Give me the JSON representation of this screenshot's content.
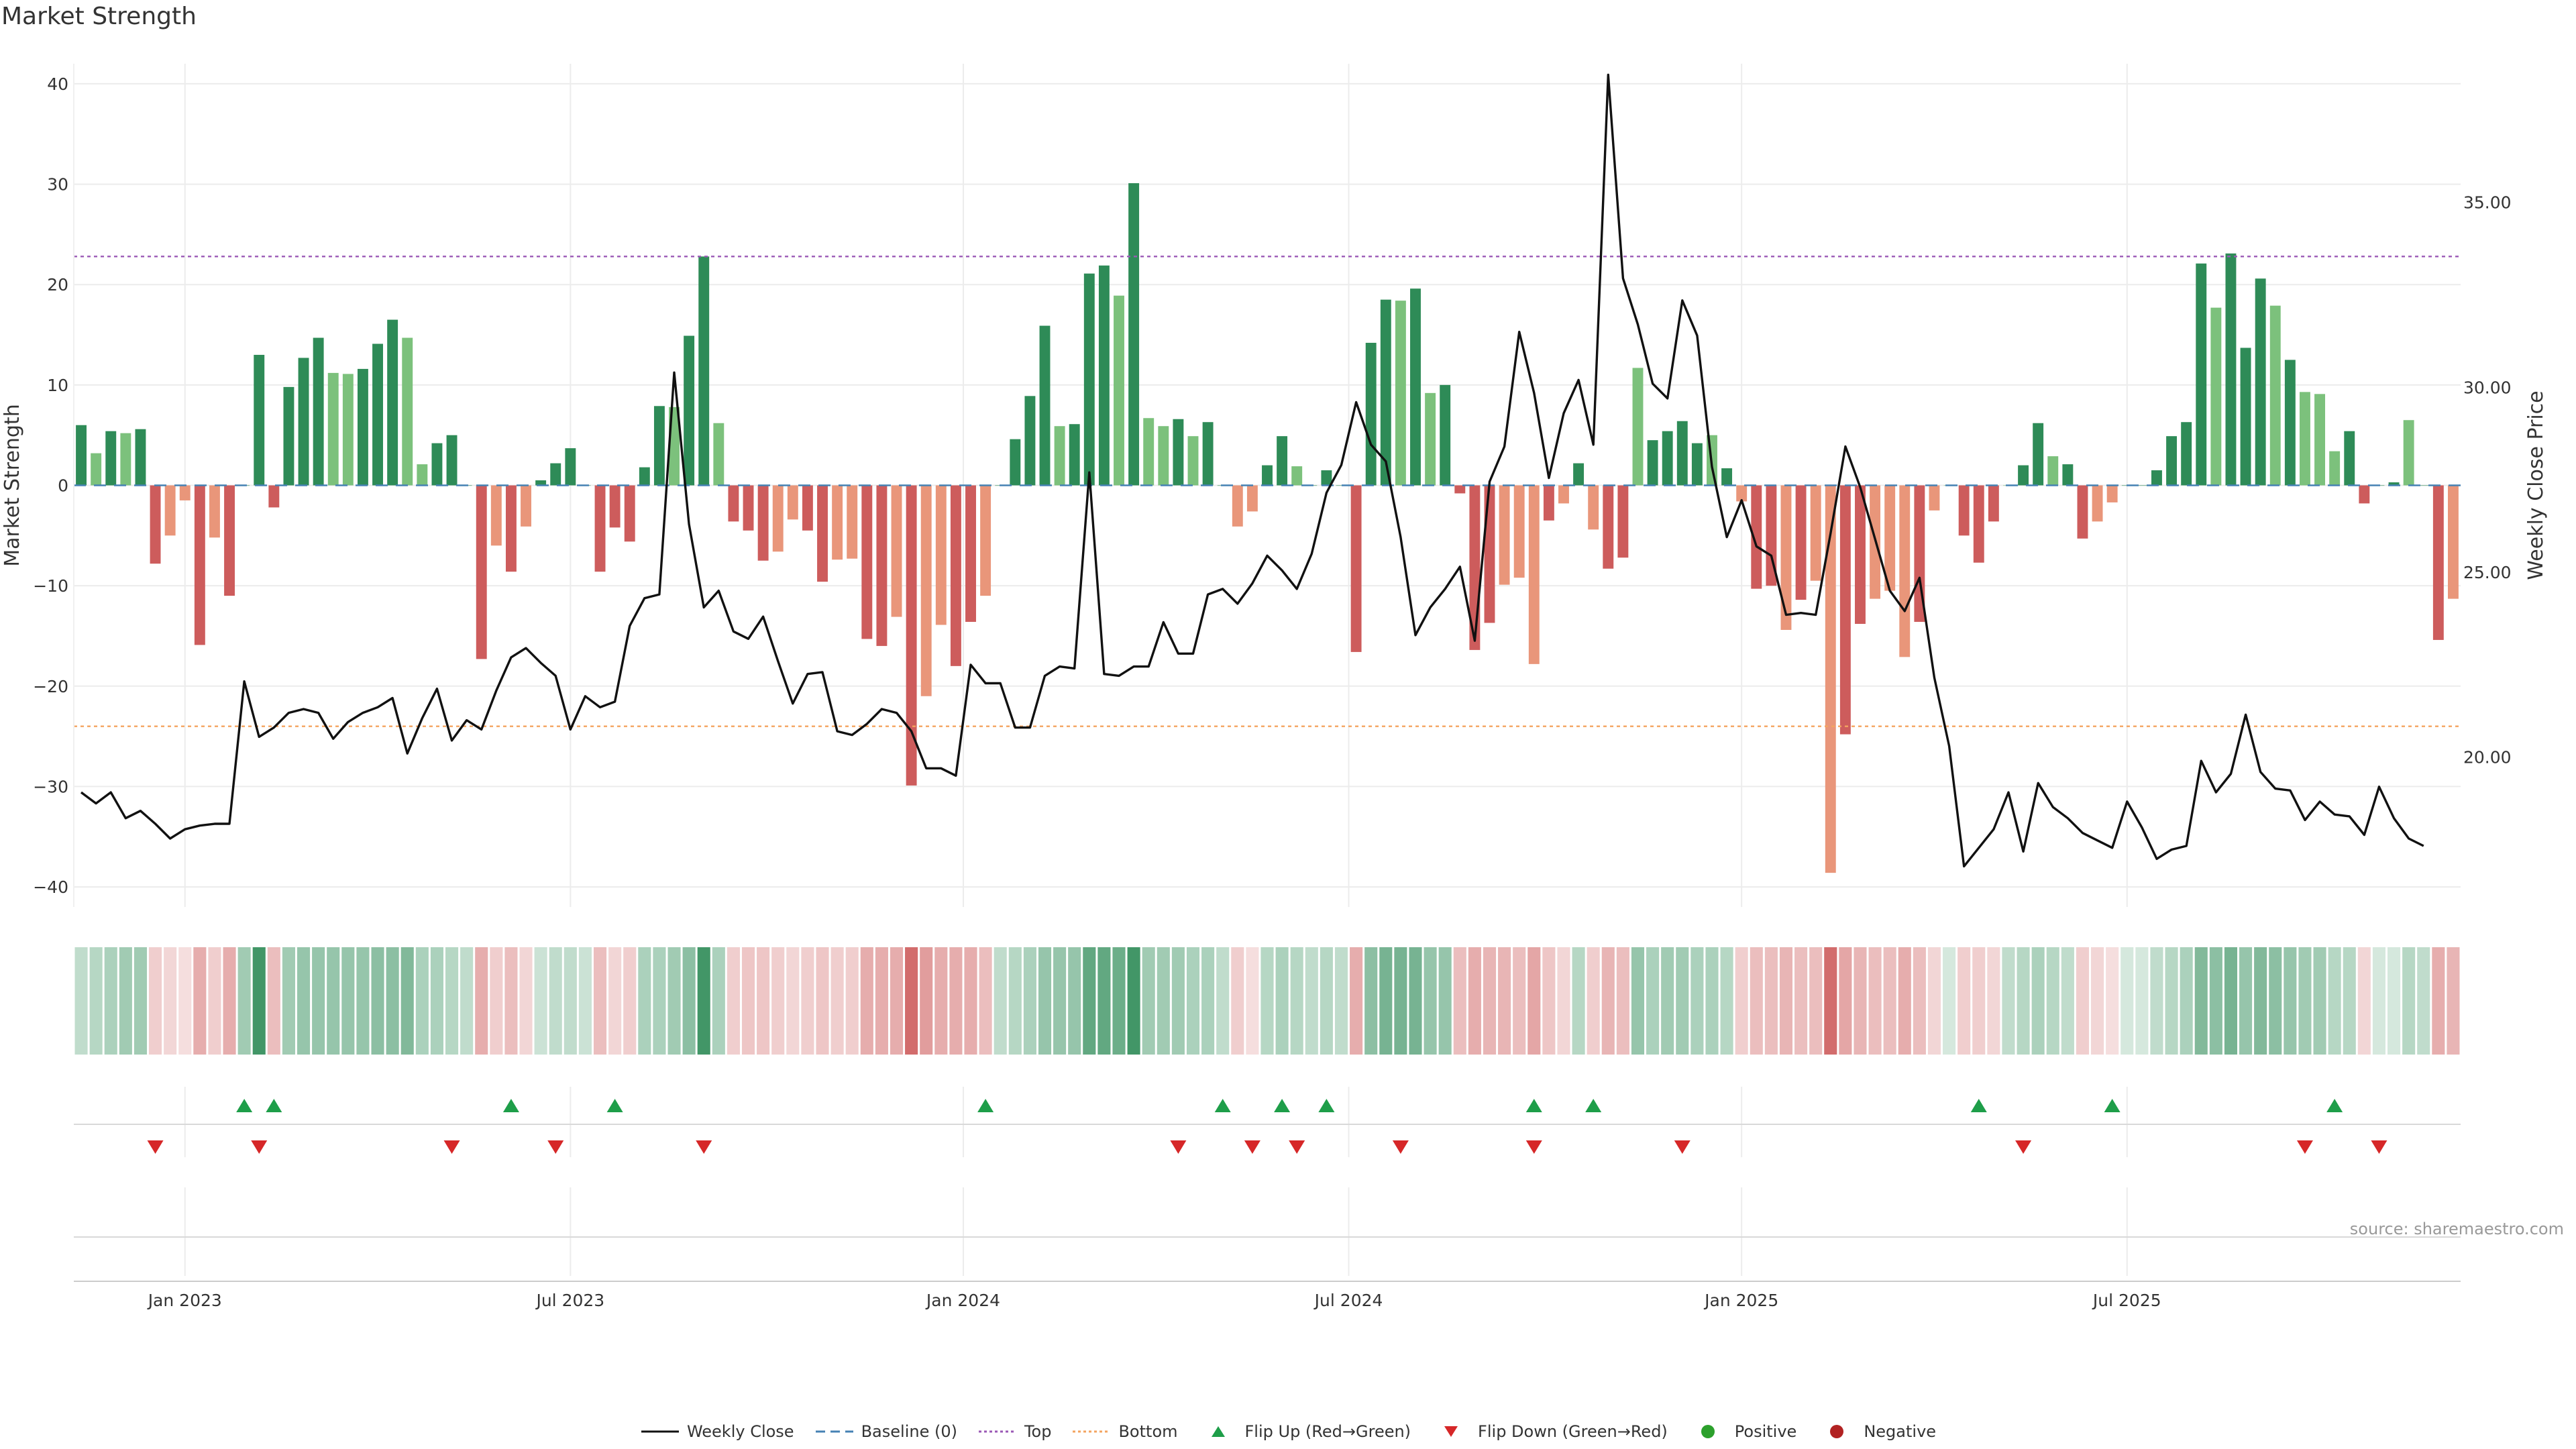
{
  "title": "Market Strength",
  "source": "source: sharemaestro.com",
  "colors": {
    "strong_green": "#2e8b57",
    "light_green": "#7cc17c",
    "strong_red": "#cd5c5c",
    "light_red": "#e9967a",
    "price_line": "#111111",
    "top_line": "#9b59b6",
    "bottom_line": "#f4a460",
    "baseline": "#4682b4",
    "flip_up": "#1e9e49",
    "flip_down": "#d62728",
    "positive": "#2ca02c",
    "negative": "#b22222"
  },
  "legend": [
    {
      "label": "Weekly Close",
      "swatch": "line-solid",
      "color": "#111111"
    },
    {
      "label": "Baseline (0)",
      "swatch": "line-dash",
      "color": "#4682b4"
    },
    {
      "label": "Top",
      "swatch": "line-dot",
      "color": "#9b59b6"
    },
    {
      "label": "Bottom",
      "swatch": "line-dot",
      "color": "#f4a460"
    },
    {
      "label": "Flip Up (Red→Green)",
      "swatch": "triangle-up",
      "color": "#1e9e49"
    },
    {
      "label": "Flip Down (Green→Red)",
      "swatch": "triangle-down",
      "color": "#d62728"
    },
    {
      "label": "Positive",
      "swatch": "dot",
      "color": "#2ca02c"
    },
    {
      "label": "Negative",
      "swatch": "dot",
      "color": "#b22222"
    }
  ],
  "chart_data": {
    "type": "bar",
    "title": "Market Strength",
    "y_left": {
      "label": "Market Strength",
      "lim": [
        -42,
        42
      ],
      "ticks": [
        40,
        30,
        20,
        10,
        0,
        -10,
        -20,
        -30,
        -40
      ]
    },
    "y_right": {
      "label": "Weekly Close Price",
      "lim": [
        15.95,
        38.75
      ],
      "ticks": [
        "35.00",
        "30.00",
        "25.00",
        "20.00"
      ]
    },
    "x_ticks": [
      "Jan 2023",
      "Jul 2023",
      "Jan 2024",
      "Jul 2024",
      "Jan 2025",
      "Jul 2025"
    ],
    "x_tick_index": [
      7,
      33,
      59.5,
      85.5,
      112,
      138
    ],
    "top_level": 22.8,
    "bottom_level": -24,
    "strength": [
      6,
      3.2,
      5.4,
      5.2,
      5.6,
      -7.8,
      -5,
      -1.5,
      -15.9,
      -5.2,
      -11,
      0,
      13,
      -2.2,
      9.8,
      12.7,
      14.7,
      11.2,
      11.1,
      11.6,
      14.1,
      16.5,
      14.7,
      2.1,
      4.2,
      5,
      0,
      -17.3,
      -6,
      -8.6,
      -4.1,
      0.5,
      2.2,
      3.7,
      0,
      -8.6,
      -4.2,
      -5.6,
      1.8,
      7.9,
      7.8,
      14.9,
      22.8,
      6.2,
      -3.6,
      -4.5,
      -7.5,
      -6.6,
      -3.4,
      -4.5,
      -9.6,
      -7.4,
      -7.3,
      -15.3,
      -16,
      -13.1,
      -29.9,
      -21,
      -13.9,
      -18,
      -13.6,
      -11,
      0,
      4.6,
      8.9,
      15.9,
      5.9,
      6.1,
      21.1,
      21.9,
      18.9,
      30.1,
      6.7,
      5.9,
      6.6,
      4.9,
      6.3,
      0,
      -4.1,
      -2.6,
      2,
      4.9,
      1.9,
      0,
      1.5,
      0,
      -16.6,
      14.2,
      18.5,
      18.4,
      19.6,
      9.2,
      10,
      -0.8,
      -16.4,
      -13.7,
      -9.9,
      -9.2,
      -17.8,
      -3.5,
      -1.8,
      2.2,
      -4.4,
      -8.3,
      -7.2,
      11.7,
      4.5,
      5.4,
      6.4,
      4.2,
      5,
      1.7,
      -1.6,
      -10.3,
      -10,
      -14.4,
      -11.4,
      -9.5,
      -38.6,
      -24.8,
      -13.8,
      -11.3,
      -10.5,
      -17.1,
      -13.6,
      -2.5,
      0,
      -5,
      -7.7,
      -3.6,
      0,
      2,
      6.2,
      2.9,
      2.1,
      -5.3,
      -3.6,
      -1.7,
      0,
      0,
      1.5,
      4.9,
      6.3,
      22.1,
      17.7,
      23.1,
      13.7,
      20.6,
      17.9,
      12.5,
      9.3,
      9.1,
      3.4,
      5.4,
      -1.8,
      0,
      0.3,
      6.5,
      0,
      -15.4,
      -11.3
    ],
    "strength_strong": [
      1,
      0,
      1,
      0,
      1,
      1,
      0,
      0,
      1,
      0,
      1,
      1,
      1,
      1,
      1,
      1,
      1,
      0,
      0,
      1,
      1,
      1,
      0,
      0,
      1,
      1,
      1,
      1,
      0,
      1,
      0,
      1,
      1,
      1,
      1,
      1,
      1,
      1,
      1,
      1,
      0,
      1,
      1,
      0,
      1,
      1,
      1,
      0,
      0,
      1,
      1,
      0,
      0,
      1,
      1,
      0,
      1,
      0,
      0,
      1,
      1,
      0,
      1,
      1,
      1,
      1,
      0,
      1,
      1,
      1,
      0,
      1,
      0,
      0,
      1,
      0,
      1,
      1,
      0,
      0,
      1,
      1,
      0,
      1,
      1,
      1,
      1,
      1,
      1,
      0,
      1,
      0,
      1,
      1,
      1,
      1,
      0,
      0,
      0,
      1,
      0,
      1,
      0,
      1,
      1,
      0,
      1,
      1,
      1,
      1,
      0,
      1,
      0,
      1,
      1,
      0,
      1,
      0,
      0,
      1,
      1,
      0,
      0,
      0,
      1,
      0,
      0,
      1,
      1,
      1,
      0,
      1,
      1,
      0,
      1,
      1,
      0,
      0,
      1,
      1,
      1,
      1,
      1,
      1,
      0,
      1,
      1,
      1,
      0,
      1,
      0,
      0,
      0,
      1,
      1,
      1,
      1,
      0,
      1,
      1,
      0
    ],
    "price": [
      19.05,
      18.75,
      19.05,
      18.35,
      18.55,
      18.2,
      17.8,
      18.05,
      18.15,
      18.2,
      18.2,
      22.05,
      20.55,
      20.8,
      21.2,
      21.3,
      21.2,
      20.5,
      20.95,
      21.2,
      21.35,
      21.6,
      20.1,
      21.05,
      21.85,
      20.45,
      21,
      20.75,
      21.8,
      22.7,
      22.95,
      22.55,
      22.2,
      20.75,
      21.65,
      21.35,
      21.5,
      23.55,
      24.3,
      24.4,
      30.4,
      26.3,
      24.05,
      24.5,
      23.4,
      23.2,
      23.8,
      22.6,
      21.45,
      22.25,
      22.3,
      20.7,
      20.6,
      20.9,
      21.3,
      21.2,
      20.7,
      19.7,
      19.7,
      19.5,
      22.5,
      22,
      22,
      20.8,
      20.8,
      22.2,
      22.45,
      22.4,
      27.7,
      22.25,
      22.2,
      22.45,
      22.45,
      23.65,
      22.8,
      22.8,
      24.4,
      24.55,
      24.15,
      24.7,
      25.45,
      25.05,
      24.55,
      25.5,
      27.15,
      27.9,
      29.6,
      28.45,
      28,
      25.95,
      23.3,
      24.05,
      24.55,
      25.15,
      23.15,
      27.45,
      28.4,
      31.5,
      29.85,
      27.55,
      29.3,
      30.2,
      28.45,
      38.45,
      32.95,
      31.7,
      30.1,
      29.7,
      32.35,
      31.4,
      27.85,
      25.95,
      26.95,
      25.7,
      25.45,
      23.85,
      23.9,
      23.85,
      26.05,
      28.4,
      27.3,
      25.9,
      24.5,
      23.95,
      24.85,
      22.15,
      20.3,
      17.05,
      17.55,
      18.05,
      19.05,
      17.45,
      19.3,
      18.65,
      18.35,
      17.95,
      17.75,
      17.55,
      18.8,
      18.1,
      17.25,
      17.5,
      17.6,
      19.9,
      19.05,
      19.55,
      21.15,
      19.6,
      19.15,
      19.1,
      18.3,
      18.8,
      18.45,
      18.4,
      17.9,
      19.2,
      18.35,
      17.8,
      17.6
    ],
    "mini_strip_opacity": [
      0.3,
      0.35,
      0.4,
      0.45,
      0.45,
      0.3,
      0.25,
      0.2,
      0.5,
      0.3,
      0.5,
      0.45,
      0.9,
      0.4,
      0.45,
      0.5,
      0.5,
      0.5,
      0.5,
      0.5,
      0.55,
      0.55,
      0.6,
      0.4,
      0.4,
      0.35,
      0.3,
      0.5,
      0.3,
      0.4,
      0.25,
      0.25,
      0.3,
      0.3,
      0.25,
      0.4,
      0.25,
      0.3,
      0.4,
      0.4,
      0.45,
      0.55,
      0.9,
      0.4,
      0.3,
      0.35,
      0.35,
      0.3,
      0.25,
      0.3,
      0.35,
      0.3,
      0.3,
      0.5,
      0.5,
      0.5,
      0.9,
      0.6,
      0.5,
      0.5,
      0.5,
      0.4,
      0.3,
      0.35,
      0.4,
      0.5,
      0.5,
      0.5,
      0.75,
      0.75,
      0.7,
      0.9,
      0.45,
      0.45,
      0.45,
      0.4,
      0.4,
      0.3,
      0.3,
      0.2,
      0.35,
      0.4,
      0.35,
      0.3,
      0.35,
      0.3,
      0.5,
      0.55,
      0.65,
      0.65,
      0.65,
      0.5,
      0.5,
      0.4,
      0.5,
      0.45,
      0.45,
      0.4,
      0.55,
      0.35,
      0.25,
      0.35,
      0.3,
      0.45,
      0.4,
      0.5,
      0.4,
      0.45,
      0.45,
      0.4,
      0.4,
      0.35,
      0.3,
      0.4,
      0.4,
      0.45,
      0.4,
      0.4,
      0.9,
      0.55,
      0.45,
      0.4,
      0.4,
      0.5,
      0.4,
      0.25,
      0.2,
      0.3,
      0.3,
      0.25,
      0.3,
      0.35,
      0.4,
      0.35,
      0.3,
      0.3,
      0.25,
      0.2,
      0.2,
      0.2,
      0.3,
      0.35,
      0.4,
      0.6,
      0.55,
      0.65,
      0.5,
      0.6,
      0.55,
      0.5,
      0.45,
      0.45,
      0.35,
      0.35,
      0.25,
      0.2,
      0.2,
      0.35,
      0.3,
      0.5,
      0.45
    ],
    "flip_up": [
      11,
      13,
      29,
      36,
      61,
      77,
      81,
      84,
      98,
      102,
      128,
      137,
      152
    ],
    "flip_down": [
      5,
      12,
      25,
      32,
      42,
      74,
      79,
      82,
      89,
      98,
      108,
      131,
      150,
      155
    ]
  }
}
